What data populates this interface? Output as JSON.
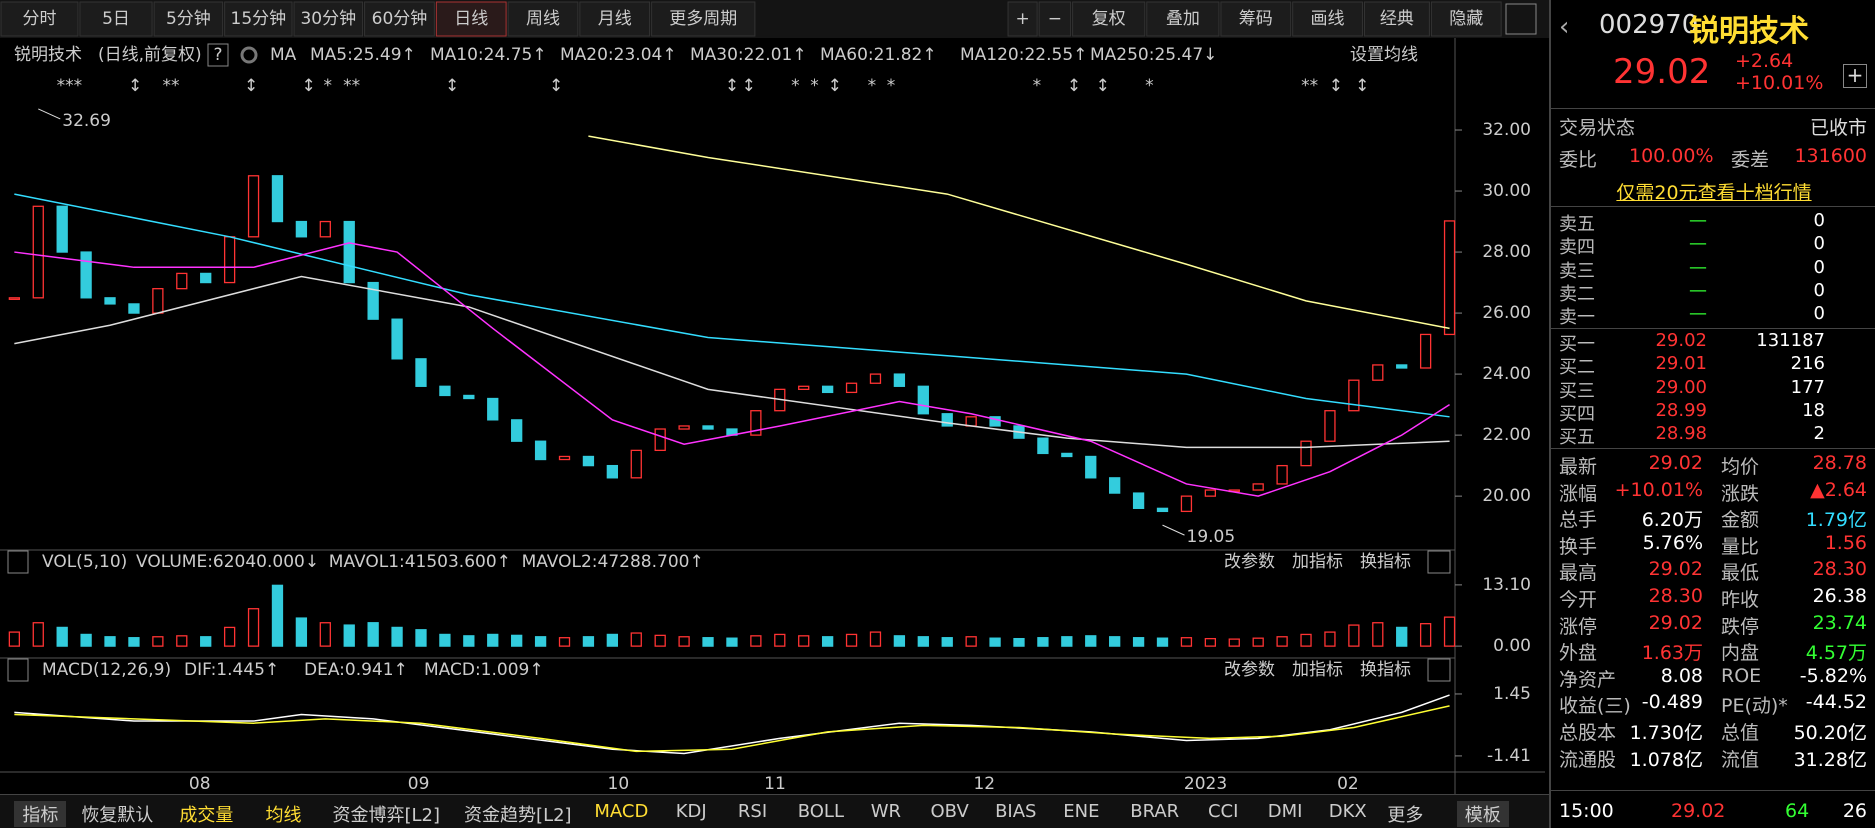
{
  "toolbar": {
    "periods": [
      "分时",
      "5日",
      "5分钟",
      "15分钟",
      "30分钟",
      "60分钟",
      "日线",
      "周线",
      "月线",
      "更多周期"
    ],
    "tools": [
      "+",
      "−",
      "复权",
      "叠加",
      "筹码",
      "画线",
      "经典",
      "隐藏"
    ]
  },
  "info": {
    "name": "锐明技术",
    "mode": "(日线,前复权)",
    "help": "?",
    "ma": "MA",
    "mas": [
      {
        "label": "MA5:25.49↑",
        "color": "#ffffff"
      },
      {
        "label": "MA10:24.75↑",
        "color": "#ffff33"
      },
      {
        "label": "MA20:23.04↑",
        "color": "#ff33ff"
      },
      {
        "label": "MA30:22.01↑",
        "color": "#33ff33"
      },
      {
        "label": "MA60:21.82↑",
        "color": "#dddddd"
      },
      {
        "label": "MA120:22.55↑",
        "color": "#33ddff"
      },
      {
        "label": "MA250:25.47↓",
        "color": "#ffff99"
      }
    ],
    "setting": "设置均线"
  },
  "markers": [
    "***",
    "↕",
    "**",
    "↕",
    "↕",
    "*",
    "**",
    "↕",
    "↕",
    "↕",
    "↕",
    "*",
    "*",
    "↕",
    "*",
    "*",
    "*",
    "↕",
    "↕",
    "*",
    "**",
    "↕",
    "↕"
  ],
  "chart_data": [
    {
      "type": "candlestick",
      "values": [
        26.5,
        29.5,
        28,
        26.5,
        26.3,
        26,
        26.8,
        27.3,
        27,
        28.5,
        30.5,
        29,
        28.5,
        29,
        27,
        25.8,
        24.5,
        23.6,
        23.3,
        23.2,
        22.5,
        21.8,
        21.2,
        21.3,
        21,
        20.6,
        21.5,
        22.2,
        22.3,
        22.2,
        22,
        22.8,
        23.5,
        23.6,
        23.4,
        23.7,
        24,
        23.6,
        22.7,
        22.3,
        22.6,
        22.3,
        21.9,
        21.4,
        21.3,
        20.6,
        20.1,
        19.6,
        19.5,
        20,
        20.2,
        20.2,
        20.4,
        21,
        21.8,
        22.8,
        23.8,
        24.3,
        24.2,
        25.3,
        29.02
      ],
      "up_color": "#ff3333",
      "down_color": "#33ccdd",
      "series": [
        {
          "color": "#ffff99",
          "x": [
            24,
            29,
            39,
            49,
            54,
            60
          ],
          "values": [
            31.8,
            31.1,
            29.9,
            27.6,
            26.4,
            25.5
          ]
        },
        {
          "color": "#33ddff",
          "x": [
            0,
            9,
            19,
            29,
            39,
            49,
            54,
            60
          ],
          "values": [
            29.9,
            28.5,
            26.6,
            25.2,
            24.6,
            24,
            23.2,
            22.6
          ]
        },
        {
          "color": "#dddddd",
          "x": [
            0,
            4,
            12,
            19,
            29,
            39,
            44,
            49,
            54,
            60
          ],
          "values": [
            25,
            25.6,
            27.2,
            26.2,
            23.5,
            22.4,
            21.9,
            21.6,
            21.6,
            21.8
          ]
        },
        {
          "color": "#ff33ff",
          "x": [
            0,
            5,
            10,
            14,
            16,
            20,
            25,
            28,
            32,
            37,
            40,
            45,
            49,
            52,
            55,
            58,
            60
          ],
          "values": [
            28,
            27.5,
            27.5,
            28.3,
            28,
            25.5,
            22.5,
            21.7,
            22.3,
            23.1,
            22.7,
            21.8,
            20.4,
            20,
            20.8,
            22,
            23
          ]
        }
      ],
      "ylim": [
        18.3,
        34.0
      ],
      "yticks": [
        {
          "value": 20,
          "label": "20.00"
        },
        {
          "value": 22,
          "label": "22.00"
        },
        {
          "value": 24,
          "label": "24.00"
        },
        {
          "value": 26,
          "label": "26.00"
        },
        {
          "value": 28,
          "label": "28.00"
        },
        {
          "value": 30,
          "label": "30.00"
        },
        {
          "value": 32,
          "label": "32.00"
        }
      ],
      "annotations": [
        {
          "x": 1,
          "value": 32.69,
          "label": "32.69"
        },
        {
          "x": 48,
          "value": 19.05,
          "label": "19.05"
        }
      ],
      "xticks": [
        {
          "value": 7.75,
          "label": "08"
        },
        {
          "value": 16.9,
          "label": "09"
        },
        {
          "value": 25.25,
          "label": "10"
        },
        {
          "value": 31.8,
          "label": "11"
        },
        {
          "value": 40.55,
          "label": "12"
        },
        {
          "value": 49.8,
          "label": "2023"
        },
        {
          "value": 55.75,
          "label": "02"
        }
      ]
    },
    {
      "type": "bar",
      "title": "VOL(5,10)",
      "legend": [
        {
          "label": "VOLUME:62040.000↓",
          "color": "#ffffff"
        },
        {
          "label": "MAVOL1:41503.600↑",
          "color": "#ffff33"
        },
        {
          "label": "MAVOL2:47288.700↑",
          "color": "#ff33ff"
        }
      ],
      "values": [
        3,
        5,
        4,
        2.5,
        2,
        1.8,
        2,
        2.2,
        2,
        4,
        8,
        13,
        6,
        5,
        4.5,
        5,
        4,
        3.5,
        2.5,
        2.2,
        2.5,
        2.3,
        2,
        1.8,
        2,
        2.5,
        2.8,
        2.3,
        2,
        1.8,
        1.7,
        2.2,
        2.5,
        2.2,
        2,
        2.5,
        3,
        2.2,
        2,
        1.8,
        2,
        1.7,
        1.6,
        1.8,
        2,
        2.2,
        2,
        1.8,
        1.7,
        1.8,
        1.6,
        1.5,
        1.7,
        2,
        2.5,
        3,
        4.5,
        5,
        4,
        4.8,
        6.2
      ],
      "ylim": [
        -1.9,
        15.0
      ],
      "yticks": [
        {
          "value": 0,
          "label": "0.00"
        },
        {
          "value": 13.1,
          "label": "13.10"
        }
      ],
      "buttons": [
        "改参数",
        "加指标",
        "换指标"
      ]
    },
    {
      "type": "line",
      "title": "MACD(12,26,9)",
      "legend": [
        {
          "label": "DIF:1.445↑",
          "color": "#ffffff"
        },
        {
          "label": "DEA:0.941↑",
          "color": "#ffff33"
        },
        {
          "label": "MACD:1.009↑",
          "color": "#ff33ff"
        }
      ],
      "series": [
        {
          "color": "#ffffff",
          "x": [
            0,
            5,
            10,
            12,
            15,
            20,
            25,
            28,
            32,
            37,
            40,
            45,
            49,
            52,
            55,
            58,
            60
          ],
          "values": [
            0.6,
            0.2,
            0.2,
            0.5,
            0.3,
            -0.4,
            -1.1,
            -1.3,
            -0.6,
            0.1,
            0,
            -0.3,
            -0.7,
            -0.6,
            -0.2,
            0.6,
            1.4
          ]
        },
        {
          "color": "#ffff33",
          "x": [
            0,
            5,
            10,
            13,
            17,
            22,
            26,
            30,
            34,
            38,
            42,
            46,
            50,
            53,
            56,
            60
          ],
          "values": [
            0.5,
            0.3,
            0.1,
            0.3,
            0.1,
            -0.6,
            -1.2,
            -1.1,
            -0.3,
            0,
            -0.1,
            -0.4,
            -0.6,
            -0.5,
            -0.1,
            0.9
          ]
        }
      ],
      "ylim": [
        -2.06,
        1.91
      ],
      "yticks": [
        {
          "value": -1.41,
          "label": "-1.41"
        },
        {
          "value": 1.45,
          "label": "1.45"
        }
      ],
      "buttons": [
        "改参数",
        "加指标",
        "换指标"
      ]
    }
  ],
  "quote": {
    "code": "002970",
    "name": "锐明技术",
    "price": "29.02",
    "change": "+2.64",
    "pct": "+10.01%",
    "status_label": "交易状态",
    "status": "已收市",
    "wb_label": "委比",
    "wb": "100.00%",
    "wc_label": "委差",
    "wc": "131600",
    "promo": "仅需20元查看十档行情",
    "asks": [
      [
        "卖五",
        "—",
        "0"
      ],
      [
        "卖四",
        "—",
        "0"
      ],
      [
        "卖三",
        "—",
        "0"
      ],
      [
        "卖二",
        "—",
        "0"
      ],
      [
        "卖一",
        "—",
        "0"
      ]
    ],
    "bids": [
      [
        "买一",
        "29.02",
        "131187"
      ],
      [
        "买二",
        "29.01",
        "216"
      ],
      [
        "买三",
        "29.00",
        "177"
      ],
      [
        "买四",
        "28.99",
        "18"
      ],
      [
        "买五",
        "28.98",
        "2"
      ]
    ],
    "stats": [
      {
        "l1": "最新",
        "v1": "29.02",
        "c1": "#ff3333",
        "l2": "均价",
        "v2": "28.78",
        "c2": "#ff3333"
      },
      {
        "l1": "涨幅",
        "v1": "+10.01%",
        "c1": "#ff3333",
        "l2": "涨跌",
        "v2": "▲2.64",
        "c2": "#ff3333"
      },
      {
        "l1": "总手",
        "v1": "6.20万",
        "c1": "#ffffff",
        "l2": "金额",
        "v2": "1.79亿",
        "c2": "#33ddff"
      },
      {
        "l1": "换手",
        "v1": "5.76%",
        "c1": "#ffffff",
        "l2": "量比",
        "v2": "1.56",
        "c2": "#ff3333"
      },
      {
        "l1": "最高",
        "v1": "29.02",
        "c1": "#ff3333",
        "l2": "最低",
        "v2": "28.30",
        "c2": "#ff3333"
      },
      {
        "l1": "今开",
        "v1": "28.30",
        "c1": "#ff3333",
        "l2": "昨收",
        "v2": "26.38",
        "c2": "#ffffff"
      },
      {
        "l1": "涨停",
        "v1": "29.02",
        "c1": "#ff3333",
        "l2": "跌停",
        "v2": "23.74",
        "c2": "#33ff33"
      },
      {
        "l1": "外盘",
        "v1": "1.63万",
        "c1": "#ff3333",
        "l2": "内盘",
        "v2": "4.57万",
        "c2": "#33ff33"
      },
      {
        "l1": "净资产",
        "v1": "8.08",
        "c1": "#ffffff",
        "l2": "ROE",
        "v2": "-5.82%",
        "c2": "#ffffff"
      },
      {
        "l1": "收益(三)",
        "v1": "-0.489",
        "c1": "#ffffff",
        "l2": "PE(动)*",
        "v2": "-44.52",
        "c2": "#ffffff"
      },
      {
        "l1": "总股本",
        "v1": "1.730亿",
        "c1": "#ffffff",
        "l2": "总值",
        "v2": "50.20亿",
        "c2": "#ffffff"
      },
      {
        "l1": "流通股",
        "v1": "1.078亿",
        "c1": "#ffffff",
        "l2": "流值",
        "v2": "31.28亿",
        "c2": "#ffffff"
      }
    ],
    "tick": [
      "15:00",
      "29.02",
      "64",
      "26"
    ]
  },
  "tabs": [
    "指标",
    "恢复默认",
    "成交量",
    "均线",
    "资金博弈[L2]",
    "资金趋势[L2]",
    "MACD",
    "KDJ",
    "RSI",
    "BOLL",
    "WR",
    "OBV",
    "BIAS",
    "ENE",
    "BRAR",
    "CCI",
    "DMI",
    "DKX",
    "更多",
    "模板"
  ]
}
